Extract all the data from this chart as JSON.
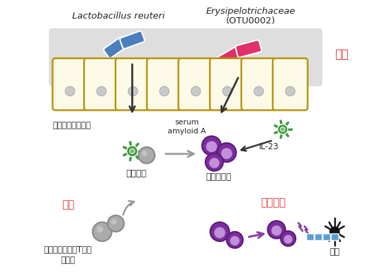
{
  "bg_color": "#ffffff",
  "intestine_bg": "#dcdcdc",
  "cell_fill": "#fdfbe8",
  "cell_border": "#b8920a",
  "nucleus_fill": "#c8c8c8",
  "bacteria_blue": "#4a7ec0",
  "bacteria_pink": "#e0306a",
  "t_cell_green": "#3a9a3a",
  "pathogenic_purple": "#7b2d9e",
  "pathogenic_light": "#c090d8",
  "myelin_color": "#5a9fd4",
  "arrow_dark": "#333333",
  "arrow_gray": "#999999",
  "arrow_purple": "#8b3fa8",
  "text_red": "#e03030",
  "text_black": "#222222",
  "label_lactobacillus": "Lactobacillus reuteri",
  "label_erysipelotrichaceae": "Erysipelotrichaceae",
  "label_otu": "(OTU0002)",
  "label_kocho": "小腸",
  "label_mimic": "ミミックペプチド",
  "label_serum": "serum\namyloid A",
  "label_il23": "IL-23",
  "label_kosa": "交差反応",
  "label_byogen": "病原性増加",
  "label_kyosho": "局所",
  "label_myelin_t": "ミエリン特当的T細胞\nの誘導",
  "label_chushin": "中枢神経",
  "label_zuisho": "脱髄"
}
